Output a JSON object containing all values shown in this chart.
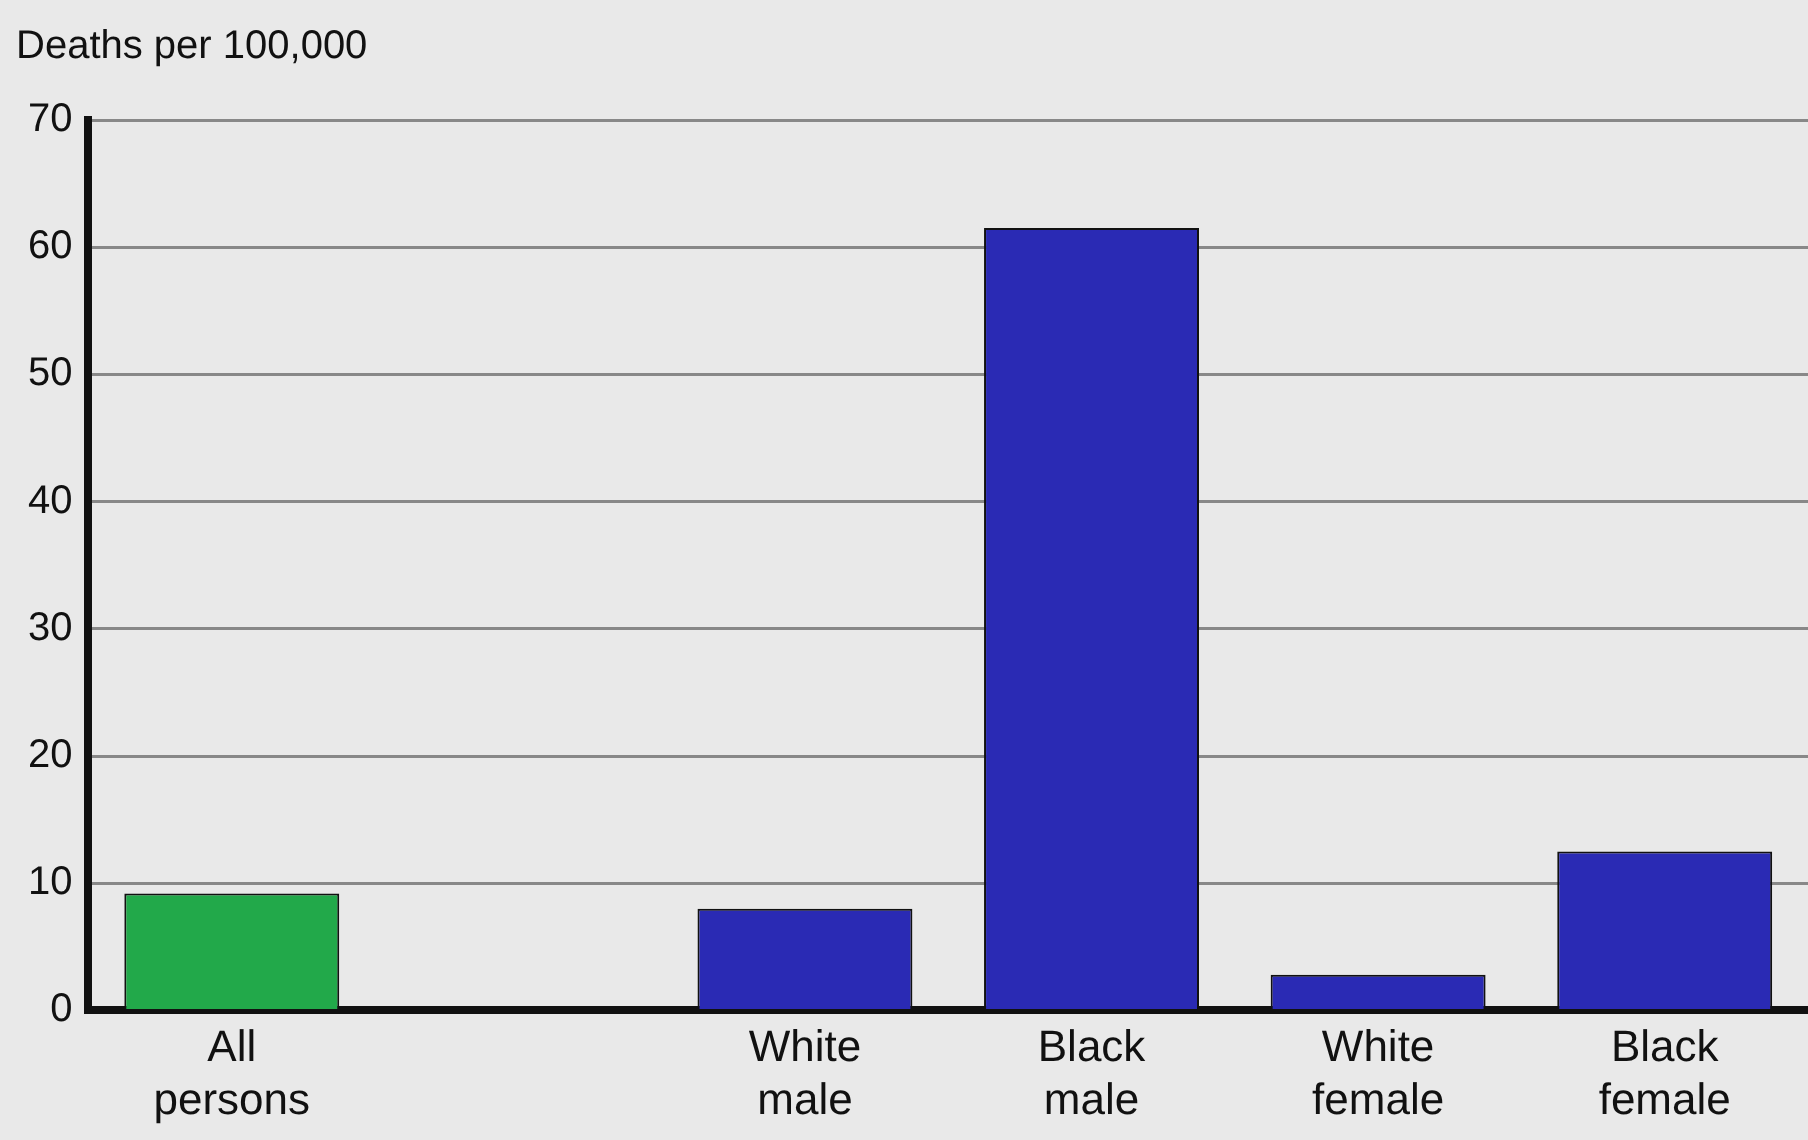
{
  "chart_data": {
    "type": "bar",
    "ylabel": "Deaths per 100,000",
    "categories": [
      "All persons",
      null,
      "White male",
      "Black male",
      "White female",
      "Black female"
    ],
    "values": [
      9.2,
      null,
      8.0,
      61.5,
      2.8,
      12.5
    ],
    "colors": [
      "#22a94a",
      "#2a2ab4",
      "#2a2ab4",
      "#2a2ab4",
      "#2a2ab4",
      "#2a2ab4"
    ],
    "ylim": [
      0,
      70
    ],
    "yticks": [
      0,
      10,
      20,
      30,
      40,
      50,
      60,
      70
    ],
    "grid": "y",
    "legend": false
  }
}
